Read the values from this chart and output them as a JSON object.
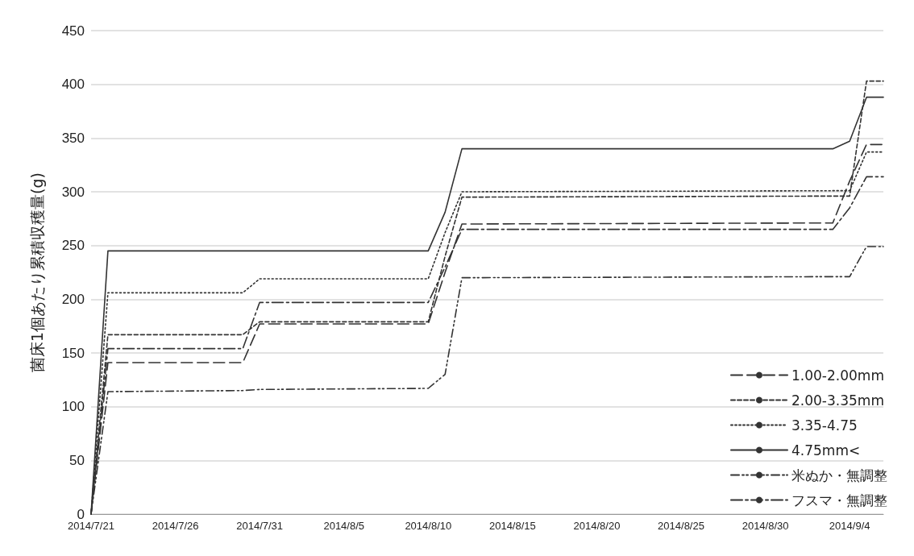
{
  "chart_data": {
    "type": "line",
    "ylabel": "菌床1個あたり累積収穫量(g)",
    "x": [
      "2014-07-21",
      "2014-07-22",
      "2014-07-30",
      "2014-07-31",
      "2014-08-10",
      "2014-08-11",
      "2014-08-12",
      "2014-09-03",
      "2014-09-04",
      "2014-09-05",
      "2014-09-06"
    ],
    "series": [
      {
        "name": "1.00-2.00mm",
        "color": "#333333",
        "line_style": "longdash",
        "values": [
          0,
          141,
          141,
          177,
          177,
          225,
          270,
          271,
          310,
          344,
          344
        ]
      },
      {
        "name": "2.00-3.35mm",
        "color": "#333333",
        "line_style": "dashed",
        "values": [
          0,
          167,
          167,
          179,
          179,
          240,
          295,
          296,
          296,
          403,
          403
        ]
      },
      {
        "name": "3.35-4.75",
        "color": "#333333",
        "line_style": "dotted",
        "values": [
          0,
          206,
          206,
          219,
          219,
          262,
          300,
          301,
          301,
          337,
          337
        ]
      },
      {
        "name": "4.75mm<",
        "color": "#333333",
        "line_style": "solid",
        "values": [
          0,
          245,
          245,
          245,
          245,
          281,
          340,
          340,
          347,
          388,
          388
        ]
      },
      {
        "name": "米ぬか・無調整",
        "color": "#333333",
        "line_style": "dashdotdot",
        "values": [
          0,
          114,
          115,
          116,
          117,
          130,
          220,
          221,
          221,
          249,
          249
        ]
      },
      {
        "name": "フスマ・無調整",
        "color": "#333333",
        "line_style": "dashdot",
        "values": [
          0,
          154,
          154,
          197,
          197,
          230,
          265,
          265,
          285,
          314,
          314
        ]
      }
    ],
    "xlim": [
      "2014-07-21",
      "2014-09-06"
    ],
    "xticks": [
      {
        "value": "2014-07-21",
        "label": "2014/7/21"
      },
      {
        "value": "2014-07-26",
        "label": "2014/7/26"
      },
      {
        "value": "2014-07-31",
        "label": "2014/7/31"
      },
      {
        "value": "2014-08-05",
        "label": "2014/8/5"
      },
      {
        "value": "2014-08-10",
        "label": "2014/8/10"
      },
      {
        "value": "2014-08-15",
        "label": "2014/8/15"
      },
      {
        "value": "2014-08-20",
        "label": "2014/8/20"
      },
      {
        "value": "2014-08-25",
        "label": "2014/8/25"
      },
      {
        "value": "2014-08-30",
        "label": "2014/8/30"
      },
      {
        "value": "2014-09-04",
        "label": "2014/9/4"
      }
    ],
    "ylim": [
      0,
      450
    ],
    "yticks": [
      0,
      50,
      100,
      150,
      200,
      250,
      300,
      350,
      400,
      450
    ],
    "grid": "y",
    "legend": "bottom right",
    "marker": "none"
  }
}
